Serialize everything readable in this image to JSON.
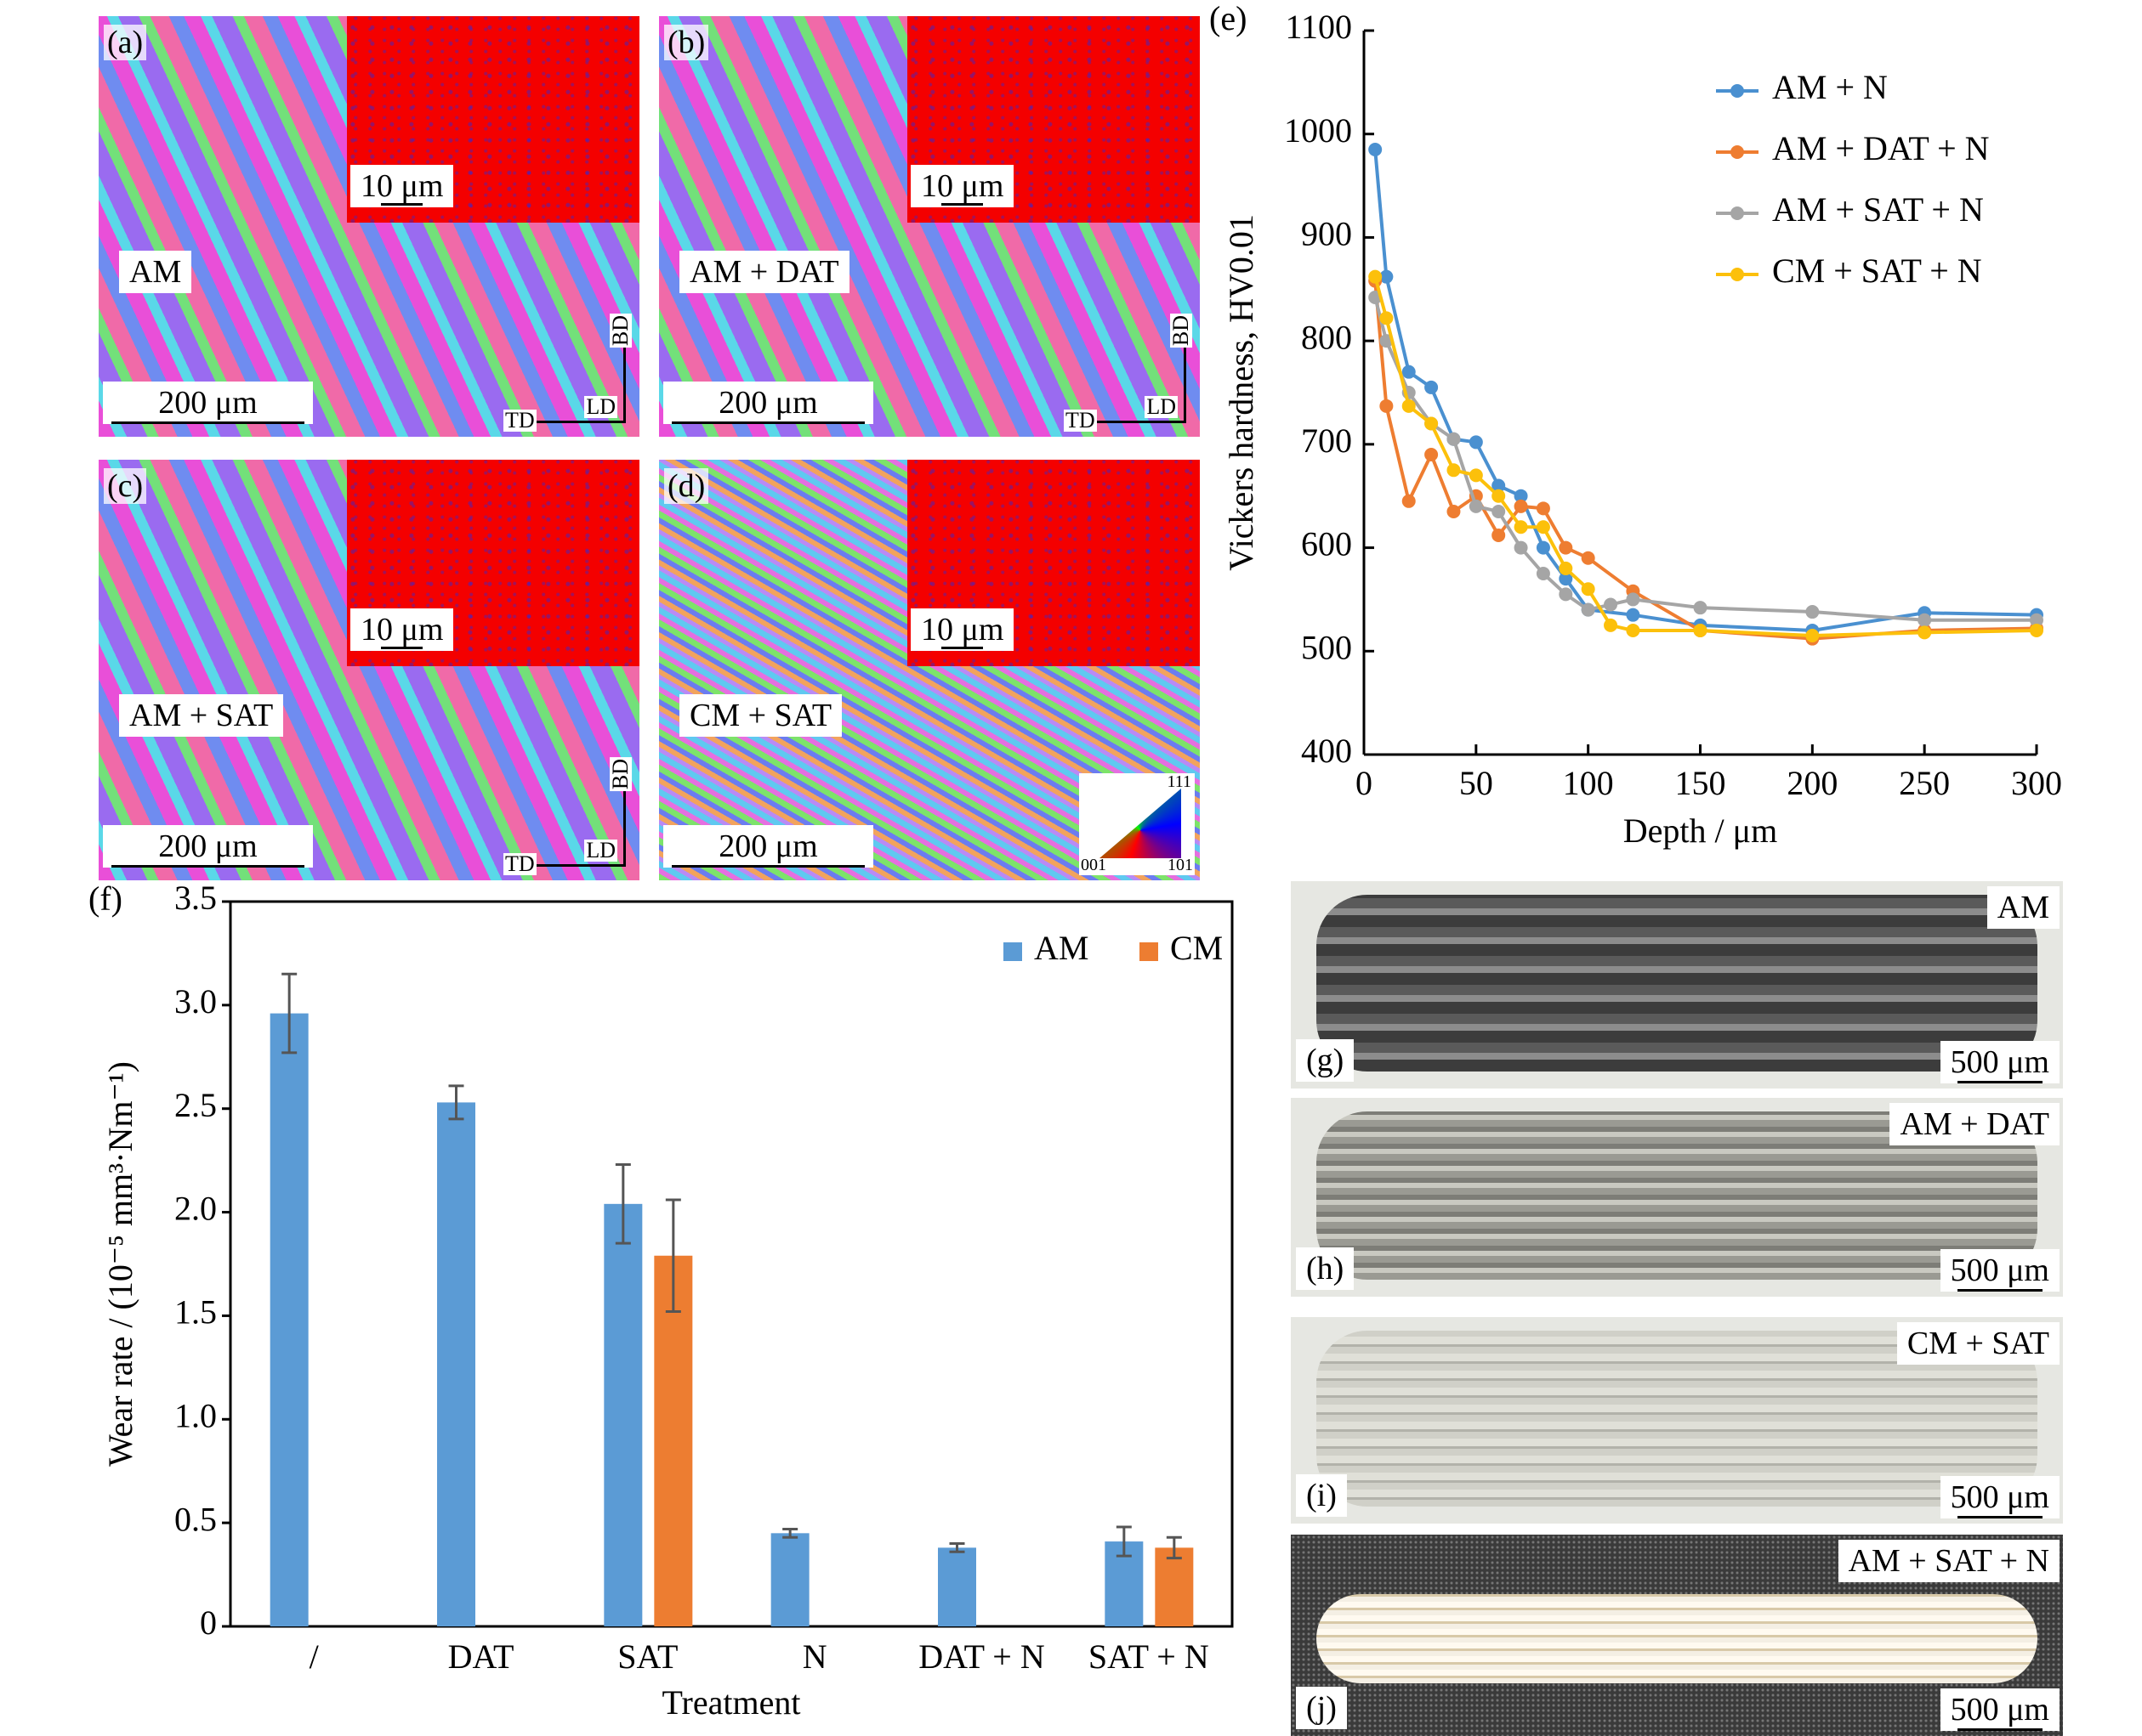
{
  "micrographs": [
    {
      "label": "(a)",
      "condition": "AM",
      "inset_scale": "10 μm",
      "scale": "200 μm",
      "axes": [
        "BD",
        "LD",
        "TD"
      ]
    },
    {
      "label": "(b)",
      "condition": "AM + DAT",
      "inset_scale": "10 μm",
      "scale": "200 μm",
      "axes": [
        "BD",
        "LD",
        "TD"
      ]
    },
    {
      "label": "(c)",
      "condition": "AM + SAT",
      "inset_scale": "10 μm",
      "scale": "200 μm",
      "axes": [
        "BD",
        "LD",
        "TD"
      ]
    },
    {
      "label": "(d)",
      "condition": "CM + SAT",
      "inset_scale": "10 μm",
      "scale": "200 μm",
      "ipf": [
        "111",
        "001",
        "101"
      ]
    }
  ],
  "chart_data": [
    {
      "type": "line",
      "panel_label": "(e)",
      "x_label": "Depth / μm",
      "y_label": "Vickers hardness, HV0.01",
      "xlim": [
        0,
        300
      ],
      "xticks": [
        0,
        50,
        100,
        150,
        200,
        250,
        300
      ],
      "ylim": [
        400,
        1100
      ],
      "yticks": [
        400,
        500,
        600,
        700,
        800,
        900,
        1000,
        1100
      ],
      "legend": "top-right",
      "series": [
        {
          "name": "AM + N",
          "color": "#4a90d0",
          "x": [
            5,
            10,
            20,
            30,
            40,
            50,
            60,
            70,
            80,
            90,
            100,
            120,
            150,
            200,
            250,
            300
          ],
          "values": [
            985,
            862,
            770,
            755,
            705,
            702,
            660,
            650,
            600,
            570,
            540,
            535,
            525,
            520,
            537,
            535
          ]
        },
        {
          "name": "AM + DAT + N",
          "color": "#ee7d31",
          "x": [
            5,
            10,
            20,
            30,
            40,
            50,
            60,
            70,
            80,
            90,
            100,
            120,
            150,
            200,
            250,
            300
          ],
          "values": [
            858,
            737,
            645,
            690,
            635,
            650,
            612,
            640,
            638,
            600,
            590,
            558,
            520,
            512,
            520,
            522
          ]
        },
        {
          "name": "AM + SAT + N",
          "color": "#a5a5a5",
          "x": [
            5,
            10,
            20,
            30,
            40,
            50,
            60,
            70,
            80,
            90,
            100,
            110,
            120,
            150,
            200,
            250,
            300
          ],
          "values": [
            842,
            800,
            750,
            720,
            705,
            640,
            635,
            600,
            575,
            555,
            540,
            545,
            550,
            542,
            538,
            530,
            530
          ]
        },
        {
          "name": "CM + SAT + N",
          "color": "#fcc00b",
          "x": [
            5,
            10,
            20,
            30,
            40,
            50,
            60,
            70,
            80,
            90,
            100,
            110,
            120,
            150,
            200,
            250,
            300
          ],
          "values": [
            862,
            822,
            737,
            720,
            675,
            670,
            650,
            620,
            620,
            580,
            560,
            525,
            520,
            520,
            515,
            518,
            520
          ]
        }
      ]
    },
    {
      "type": "bar",
      "panel_label": "(f)",
      "x_label": "Treatment",
      "y_label": "Wear rate / (10⁻⁵ mm³·Nm⁻¹)",
      "categories": [
        "/",
        "DAT",
        "SAT",
        "N",
        "DAT + N",
        "SAT + N"
      ],
      "ylim": [
        0,
        3.5
      ],
      "yticks": [
        0,
        0.5,
        {
          "value": 1,
          "label": "1.0"
        },
        1.5,
        {
          "value": 2,
          "label": "2.0"
        },
        2.5,
        {
          "value": 3,
          "label": "3.0"
        },
        3.5
      ],
      "legend": "top-right",
      "series": [
        {
          "name": "AM",
          "color": "#5b9bd5",
          "values": [
            2.96,
            2.53,
            2.04,
            0.45,
            0.38,
            0.41
          ],
          "errors": [
            0.19,
            0.08,
            0.19,
            0.02,
            0.02,
            0.07
          ]
        },
        {
          "name": "CM",
          "color": "#ed7d31",
          "values": [
            null,
            null,
            1.79,
            null,
            null,
            0.38
          ],
          "errors": [
            null,
            null,
            0.27,
            null,
            null,
            0.05
          ]
        }
      ]
    }
  ],
  "wear_tracks": [
    {
      "label": "(g)",
      "condition": "AM",
      "scale": "500 μm"
    },
    {
      "label": "(h)",
      "condition": "AM + DAT",
      "scale": "500 μm"
    },
    {
      "label": "(i)",
      "condition": "CM + SAT",
      "scale": "500 μm"
    },
    {
      "label": "(j)",
      "condition": "AM + SAT + N",
      "scale": "500 μm"
    }
  ]
}
